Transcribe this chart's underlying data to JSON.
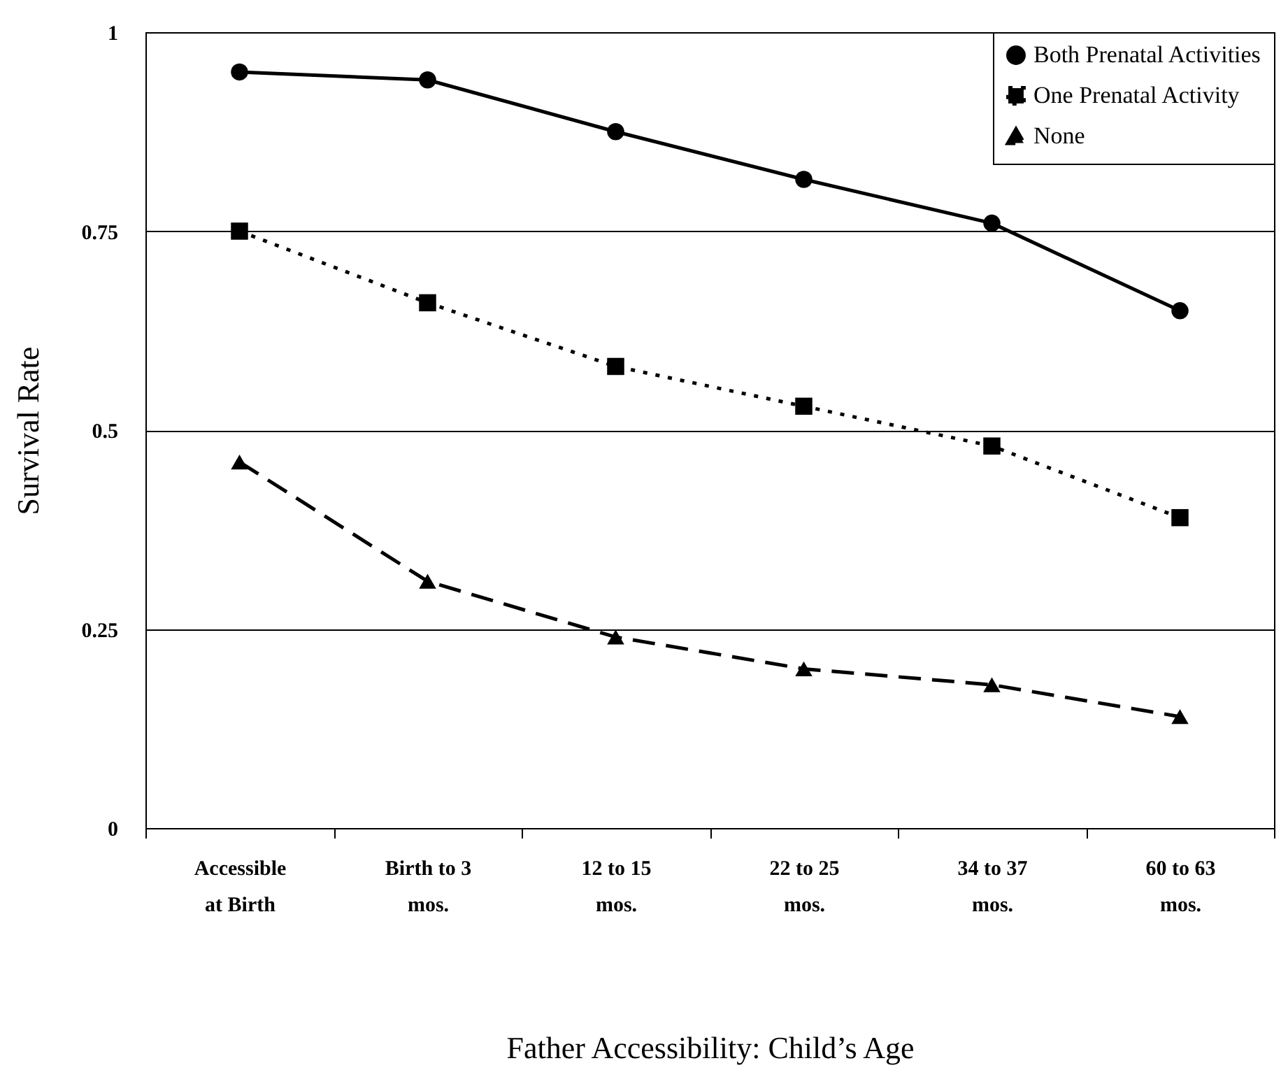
{
  "chart_data": {
    "type": "line",
    "xlabel": "Father Accessibility: Child’s Age",
    "ylabel": "Survival Rate",
    "categories": [
      "Accessible\nat Birth",
      "Birth to 3\nmos.",
      "12 to 15\nmos.",
      "22 to 25\nmos.",
      "34 to 37\nmos.",
      "60 to 63\nmos."
    ],
    "series": [
      {
        "name": "Both Prenatal Activities",
        "color": "#000000",
        "marker": "circle",
        "line_style": "solid",
        "values": [
          0.95,
          0.94,
          0.875,
          0.815,
          0.76,
          0.65
        ]
      },
      {
        "name": "One Prenatal Activity",
        "color": "#000000",
        "marker": "square",
        "line_style": "dotted",
        "values": [
          0.75,
          0.66,
          0.58,
          0.53,
          0.48,
          0.39
        ]
      },
      {
        "name": "None",
        "color": "#000000",
        "marker": "triangle",
        "line_style": "dashed",
        "values": [
          0.46,
          0.31,
          0.24,
          0.2,
          0.18,
          0.14
        ]
      }
    ],
    "ylim": [
      0,
      1
    ],
    "yticks": [
      0,
      0.25,
      0.5,
      0.75,
      1
    ],
    "grid": "y",
    "legend": "top right"
  }
}
